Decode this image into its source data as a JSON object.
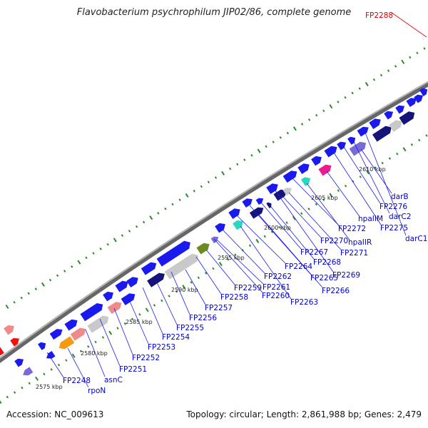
{
  "title": "Flavobacterium psychrophilum JIP02/86, complete genome",
  "footer": {
    "accession": "Accession: NC_009613",
    "summary": "Topology: circular; Length: 2,861,988 bp; Genes: 2,479"
  },
  "colors": {
    "backbone": "#8a8a8a",
    "gene_forward": "#1a1aee",
    "gene_label": "#0000cc",
    "highlight_label": "#dd0000",
    "tick": "#2a8a2a"
  },
  "kbp_marks": [
    "2575 kbp",
    "2580 kbp",
    "2585 kbp",
    "2590 kbp",
    "2595 kbp",
    "2600 kbp",
    "2605 kbp",
    "2610 kbp"
  ],
  "gene_labels": [
    {
      "text": "FP2248",
      "color": "blue"
    },
    {
      "text": "rpoN",
      "color": "blue"
    },
    {
      "text": "asnC",
      "color": "blue"
    },
    {
      "text": "FP2251",
      "color": "blue"
    },
    {
      "text": "FP2252",
      "color": "blue"
    },
    {
      "text": "FP2253",
      "color": "blue"
    },
    {
      "text": "FP2254",
      "color": "blue"
    },
    {
      "text": "FP2255",
      "color": "blue"
    },
    {
      "text": "FP2256",
      "color": "blue"
    },
    {
      "text": "FP2257",
      "color": "blue"
    },
    {
      "text": "FP2258",
      "color": "blue"
    },
    {
      "text": "FP2259",
      "color": "blue"
    },
    {
      "text": "FP2260",
      "color": "blue"
    },
    {
      "text": "FP2261",
      "color": "blue"
    },
    {
      "text": "FP2262",
      "color": "blue"
    },
    {
      "text": "FP2263",
      "color": "blue"
    },
    {
      "text": "FP2264",
      "color": "blue"
    },
    {
      "text": "FP2265",
      "color": "blue"
    },
    {
      "text": "FP2266",
      "color": "blue"
    },
    {
      "text": "FP2267",
      "color": "blue"
    },
    {
      "text": "FP2268",
      "color": "blue"
    },
    {
      "text": "FP2269",
      "color": "blue"
    },
    {
      "text": "FP2270",
      "color": "blue"
    },
    {
      "text": "FP2271",
      "color": "blue"
    },
    {
      "text": "FP2272",
      "color": "blue"
    },
    {
      "text": "hpaIIR",
      "color": "blue"
    },
    {
      "text": "hpaIIM",
      "color": "blue"
    },
    {
      "text": "FP2275",
      "color": "blue"
    },
    {
      "text": "FP2276",
      "color": "blue"
    },
    {
      "text": "darC2",
      "color": "blue"
    },
    {
      "text": "darB",
      "color": "blue"
    },
    {
      "text": "darC1",
      "color": "blue"
    },
    {
      "text": "FP2288",
      "color": "red"
    }
  ]
}
